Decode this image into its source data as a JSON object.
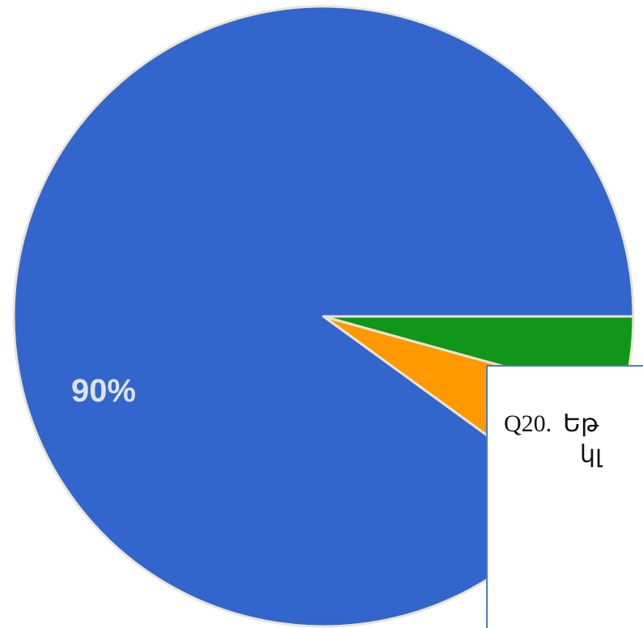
{
  "chart_data": {
    "type": "pie",
    "title": "",
    "slices": [
      {
        "value": 90,
        "label": "90%",
        "color": "#3366cc"
      },
      {
        "value": 5.7,
        "label": "",
        "color": "#ff9900"
      },
      {
        "value": 4.3,
        "label": "",
        "color": "#109618"
      }
    ],
    "legend": "none"
  },
  "question": {
    "number": "Q20.",
    "line1": "Եթ",
    "line2": "կլ"
  }
}
